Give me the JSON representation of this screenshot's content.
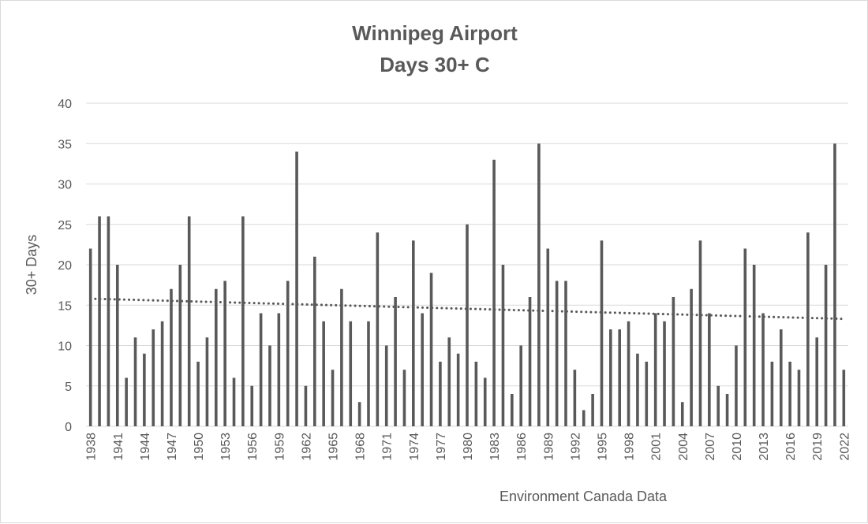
{
  "chart_data": {
    "type": "bar",
    "title": "Winnipeg Airport",
    "subtitle": "Days 30+ C",
    "ylabel": "30+ Days",
    "xlabel": "",
    "annotation": "Environment Canada Data",
    "ylim": [
      0,
      40
    ],
    "y_ticks": [
      0,
      5,
      10,
      15,
      20,
      25,
      30,
      35,
      40
    ],
    "grid": true,
    "legend": "none",
    "trendline": {
      "type": "linear",
      "style": "dotted",
      "start": 15.8,
      "end": 13.3
    },
    "categories": [
      "1938",
      "1939",
      "1940",
      "1941",
      "1942",
      "1943",
      "1944",
      "1945",
      "1946",
      "1947",
      "1948",
      "1949",
      "1950",
      "1951",
      "1952",
      "1953",
      "1954",
      "1955",
      "1956",
      "1957",
      "1958",
      "1959",
      "1960",
      "1961",
      "1962",
      "1963",
      "1964",
      "1965",
      "1966",
      "1967",
      "1968",
      "1969",
      "1970",
      "1971",
      "1972",
      "1973",
      "1974",
      "1975",
      "1976",
      "1977",
      "1978",
      "1979",
      "1980",
      "1981",
      "1982",
      "1983",
      "1984",
      "1985",
      "1986",
      "1987",
      "1988",
      "1989",
      "1990",
      "1991",
      "1992",
      "1993",
      "1994",
      "1995",
      "1996",
      "1997",
      "1998",
      "1999",
      "2000",
      "2001",
      "2002",
      "2003",
      "2004",
      "2005",
      "2006",
      "2007",
      "2008",
      "2009",
      "2010",
      "2011",
      "2012",
      "2013",
      "2014",
      "2015",
      "2016",
      "2017",
      "2018",
      "2019",
      "2020",
      "2021",
      "2022"
    ],
    "labeled_ticks": [
      "1938",
      "1941",
      "1944",
      "1947",
      "1950",
      "1953",
      "1956",
      "1959",
      "1962",
      "1965",
      "1968",
      "1971",
      "1974",
      "1977",
      "1980",
      "1983",
      "1986",
      "1989",
      "1992",
      "1995",
      "1998",
      "2001",
      "2004",
      "2007",
      "2010",
      "2013",
      "2016",
      "2019",
      "2022"
    ],
    "values": [
      22,
      26,
      26,
      20,
      6,
      11,
      9,
      12,
      13,
      17,
      20,
      26,
      8,
      11,
      17,
      18,
      6,
      26,
      5,
      14,
      10,
      14,
      18,
      34,
      5,
      21,
      13,
      7,
      17,
      13,
      3,
      13,
      24,
      10,
      16,
      7,
      23,
      14,
      19,
      8,
      11,
      9,
      25,
      8,
      6,
      33,
      20,
      4,
      10,
      16,
      35,
      22,
      18,
      18,
      7,
      2,
      4,
      23,
      12,
      12,
      13,
      9,
      8,
      14,
      13,
      16,
      3,
      17,
      23,
      14,
      5,
      4,
      10,
      22,
      20,
      14,
      8,
      12,
      8,
      7,
      24,
      11,
      20,
      35,
      7
    ],
    "colors": {
      "bar": "#595959",
      "trend": "#595959",
      "grid": "#d9d9d9",
      "text": "#595959"
    }
  }
}
